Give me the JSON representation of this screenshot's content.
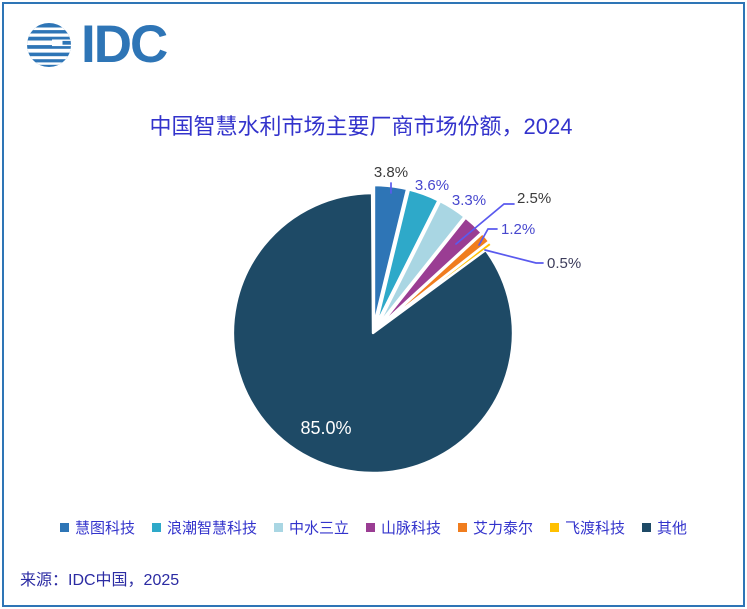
{
  "page": {
    "border_color": "#2E75B6",
    "background": "#FFFFFF"
  },
  "logo": {
    "text": "IDC",
    "color": "#2E75B6",
    "icon": "idc-globe-icon"
  },
  "chart_data": {
    "type": "pie",
    "title": "中国智慧水利市场主要厂商市场份额，2024",
    "title_color": "#3333CC",
    "categories": [
      "慧图科技",
      "浪潮智慧科技",
      "中水三立",
      "山脉科技",
      "艾力泰尔",
      "飞渡科技",
      "其他"
    ],
    "values": [
      3.8,
      3.6,
      3.3,
      2.5,
      1.2,
      0.5,
      85.0
    ],
    "labels": [
      "3.8%",
      "3.6%",
      "3.3%",
      "2.5%",
      "1.2%",
      "0.5%",
      "85.0%"
    ],
    "colors": [
      "#2E75B6",
      "#2EA9C9",
      "#A9D6E3",
      "#9A3D93",
      "#F07D1E",
      "#FFC000",
      "#1E4A66"
    ],
    "label_colors": [
      "#3B3B3B",
      "#4747CE",
      "#4747CE",
      "#3B3B3B",
      "#4747CE",
      "#3D3D5C",
      "#FFFFFF"
    ],
    "leader_line_color": "#5A5AEE",
    "slice_border_color": "#FFFFFF",
    "start_angle_deg": 0,
    "direction": "clockwise",
    "legend_position": "bottom",
    "legend_text_color": "#3333CC"
  },
  "source": {
    "text": "来源：IDC中国，2025",
    "color": "#2B2BA3"
  }
}
